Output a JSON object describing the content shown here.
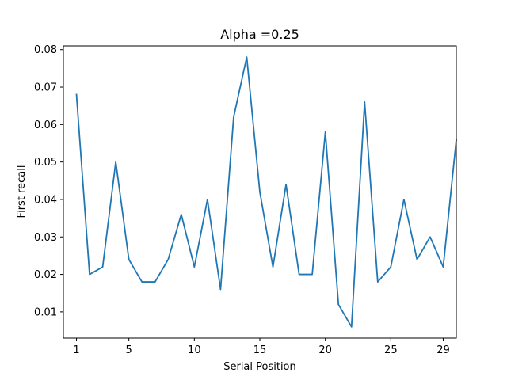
{
  "chart_data": {
    "type": "line",
    "title": "Alpha =0.25",
    "xlabel": "Serial Position",
    "ylabel": "First recall",
    "xlim": [
      0.0,
      30.0
    ],
    "ylim": [
      0.003,
      0.081
    ],
    "x_ticks": [
      {
        "value": 1,
        "label": "1"
      },
      {
        "value": 5,
        "label": "5"
      },
      {
        "value": 10,
        "label": "10"
      },
      {
        "value": 15,
        "label": "15"
      },
      {
        "value": 20,
        "label": "20"
      },
      {
        "value": 25,
        "label": "25"
      },
      {
        "value": 29,
        "label": "29"
      }
    ],
    "y_ticks": [
      {
        "value": 0.01,
        "label": "0.01"
      },
      {
        "value": 0.02,
        "label": "0.02"
      },
      {
        "value": 0.03,
        "label": "0.03"
      },
      {
        "value": 0.04,
        "label": "0.04"
      },
      {
        "value": 0.05,
        "label": "0.05"
      },
      {
        "value": 0.06,
        "label": "0.06"
      },
      {
        "value": 0.07,
        "label": "0.07"
      },
      {
        "value": 0.08,
        "label": "0.08"
      }
    ],
    "grid": false,
    "legend": "none",
    "series": [
      {
        "color": "#1f77b4",
        "x": [
          1,
          2,
          3,
          4,
          5,
          6,
          7,
          8,
          9,
          10,
          11,
          12,
          13,
          14,
          15,
          16,
          17,
          18,
          19,
          20,
          21,
          22,
          23,
          24,
          25,
          26,
          27,
          28,
          29,
          30
        ],
        "values": [
          0.068,
          0.02,
          0.022,
          0.05,
          0.024,
          0.018,
          0.018,
          0.024,
          0.036,
          0.022,
          0.04,
          0.016,
          0.062,
          0.078,
          0.042,
          0.022,
          0.044,
          0.02,
          0.02,
          0.058,
          0.012,
          0.006,
          0.066,
          0.018,
          0.022,
          0.04,
          0.024,
          0.03,
          0.022,
          0.056
        ]
      }
    ]
  }
}
